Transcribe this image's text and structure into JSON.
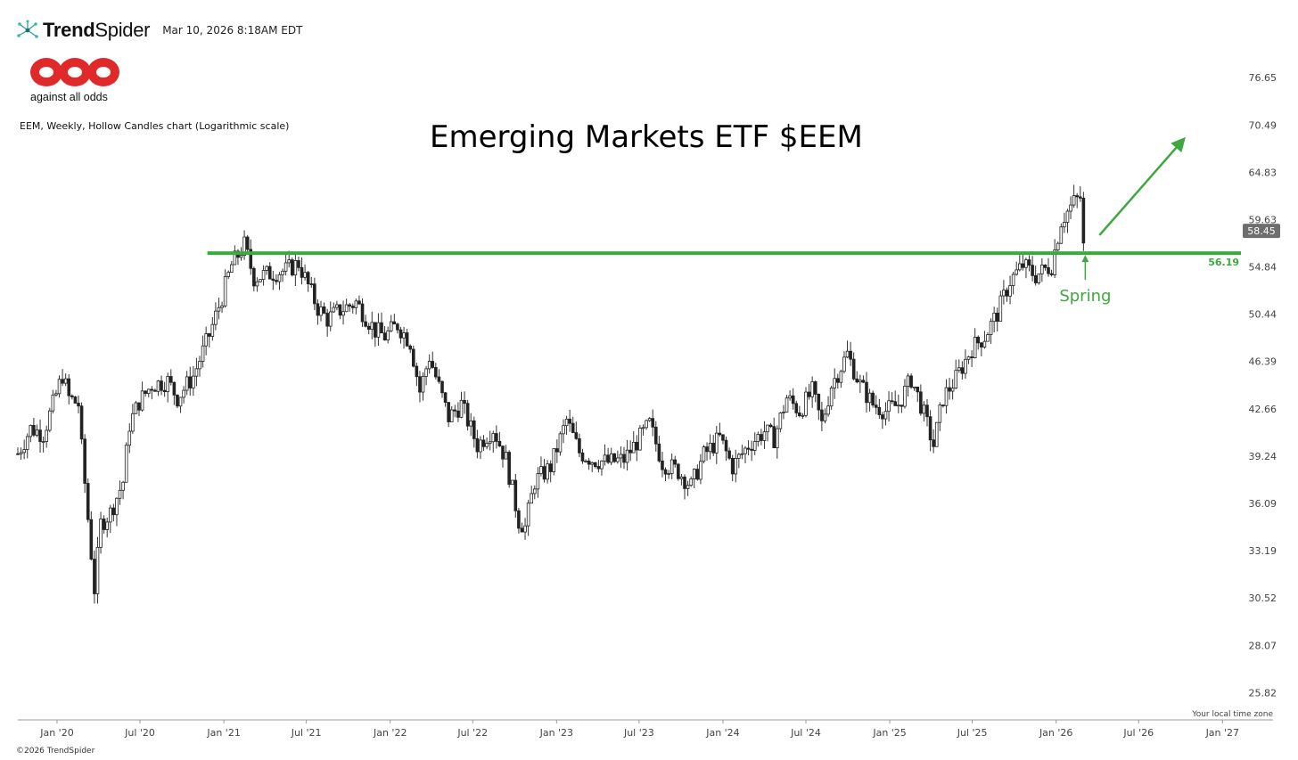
{
  "header": {
    "brand_bold": "Trend",
    "brand_light": "Spider",
    "timestamp": "Mar 10, 2026 8:18AM EDT"
  },
  "logo": {
    "caption": "against all odds",
    "icon": "aao-logo",
    "color": "#e02a2a"
  },
  "chart_description": "EEM, Weekly, Hollow Candles chart (Logarithmic scale)",
  "footer": {
    "copyright": "©2026 TrendSpider",
    "timezone_note": "Your local time zone"
  },
  "chart_data": {
    "type": "candlestick",
    "title": "Emerging Markets ETF $EEM",
    "scale": "log",
    "ylim": [
      24.6,
      80.0
    ],
    "y_ticks": [
      76.65,
      70.49,
      64.83,
      59.63,
      54.84,
      50.44,
      46.39,
      42.66,
      39.24,
      36.09,
      33.19,
      30.52,
      28.07,
      25.82
    ],
    "x_ticks": [
      "Jan '20",
      "Jul '20",
      "Jan '21",
      "Jul '21",
      "Jan '22",
      "Jul '22",
      "Jan '23",
      "Jul '23",
      "Jan '24",
      "Jul '24",
      "Jan '25",
      "Jul '25",
      "Jan '26",
      "Jul '26",
      "Jan '27"
    ],
    "last_price": "58.45",
    "support_line": {
      "value": 56.19,
      "label": "56.19",
      "start": "2021-02-01",
      "color": "#3ea83e"
    },
    "annotation": {
      "text": "Spring",
      "date": "2026-03-02",
      "color": "#3ea83e"
    },
    "trend_arrow": {
      "from_date": "2026-04-06",
      "from_value": 58.0,
      "to_date": "2026-10-12",
      "to_value": 69.0,
      "color": "#3ea83e"
    },
    "price_path": [
      [
        "2019-10-07",
        39.4
      ],
      [
        "2019-11-04",
        41.2
      ],
      [
        "2019-12-02",
        40.8
      ],
      [
        "2020-01-13",
        45.3
      ],
      [
        "2020-01-27",
        43.5
      ],
      [
        "2020-02-17",
        43.0
      ],
      [
        "2020-02-24",
        39.8
      ],
      [
        "2020-03-16",
        33.0
      ],
      [
        "2020-03-23",
        31.0
      ],
      [
        "2020-04-06",
        34.8
      ],
      [
        "2020-04-27",
        35.5
      ],
      [
        "2020-05-25",
        37.5
      ],
      [
        "2020-06-08",
        41.5
      ],
      [
        "2020-06-29",
        43.2
      ],
      [
        "2020-07-27",
        44.5
      ],
      [
        "2020-08-31",
        44.8
      ],
      [
        "2020-09-21",
        43.5
      ],
      [
        "2020-10-26",
        45.2
      ],
      [
        "2020-11-30",
        48.6
      ],
      [
        "2020-12-28",
        52.0
      ],
      [
        "2021-01-18",
        55.0
      ],
      [
        "2021-02-15",
        57.0
      ],
      [
        "2021-03-08",
        53.8
      ],
      [
        "2021-04-12",
        54.2
      ],
      [
        "2021-05-17",
        54.5
      ],
      [
        "2021-06-14",
        55.2
      ],
      [
        "2021-07-26",
        51.0
      ],
      [
        "2021-08-16",
        50.0
      ],
      [
        "2021-09-13",
        50.8
      ],
      [
        "2021-10-18",
        51.5
      ],
      [
        "2021-11-29",
        49.0
      ],
      [
        "2021-12-20",
        48.5
      ],
      [
        "2022-01-17",
        49.5
      ],
      [
        "2022-02-14",
        48.0
      ],
      [
        "2022-03-07",
        44.0
      ],
      [
        "2022-03-28",
        46.8
      ],
      [
        "2022-05-09",
        42.0
      ],
      [
        "2022-06-06",
        43.0
      ],
      [
        "2022-07-11",
        40.0
      ],
      [
        "2022-08-15",
        41.2
      ],
      [
        "2022-09-12",
        39.0
      ],
      [
        "2022-10-10",
        35.0
      ],
      [
        "2022-10-24",
        34.6
      ],
      [
        "2022-11-14",
        37.5
      ],
      [
        "2022-12-19",
        38.5
      ],
      [
        "2023-01-23",
        41.8
      ],
      [
        "2023-02-20",
        39.5
      ],
      [
        "2023-03-20",
        39.0
      ],
      [
        "2023-04-24",
        38.8
      ],
      [
        "2023-05-29",
        39.0
      ],
      [
        "2023-07-24",
        41.5
      ],
      [
        "2023-08-21",
        38.8
      ],
      [
        "2023-09-25",
        38.2
      ],
      [
        "2023-10-23",
        37.2
      ],
      [
        "2023-11-20",
        39.3
      ],
      [
        "2023-12-25",
        40.5
      ],
      [
        "2024-01-22",
        38.5
      ],
      [
        "2024-02-26",
        40.0
      ],
      [
        "2024-04-01",
        41.0
      ],
      [
        "2024-04-22",
        40.5
      ],
      [
        "2024-05-20",
        43.5
      ],
      [
        "2024-06-17",
        42.5
      ],
      [
        "2024-07-15",
        44.0
      ],
      [
        "2024-08-05",
        41.5
      ],
      [
        "2024-08-26",
        44.5
      ],
      [
        "2024-09-30",
        47.0
      ],
      [
        "2024-10-28",
        44.5
      ],
      [
        "2024-11-25",
        43.0
      ],
      [
        "2024-12-23",
        42.5
      ],
      [
        "2025-01-20",
        43.0
      ],
      [
        "2025-02-17",
        45.0
      ],
      [
        "2025-03-10",
        43.0
      ],
      [
        "2025-04-07",
        40.0
      ],
      [
        "2025-04-28",
        43.5
      ],
      [
        "2025-05-26",
        45.0
      ],
      [
        "2025-06-30",
        47.5
      ],
      [
        "2025-07-28",
        48.5
      ],
      [
        "2025-08-25",
        50.5
      ],
      [
        "2025-09-22",
        53.5
      ],
      [
        "2025-10-20",
        55.0
      ],
      [
        "2025-11-17",
        54.0
      ],
      [
        "2025-12-22",
        55.0
      ],
      [
        "2026-01-12",
        59.5
      ],
      [
        "2026-02-09",
        61.5
      ],
      [
        "2026-02-23",
        62.0
      ],
      [
        "2026-03-02",
        56.8
      ]
    ]
  }
}
